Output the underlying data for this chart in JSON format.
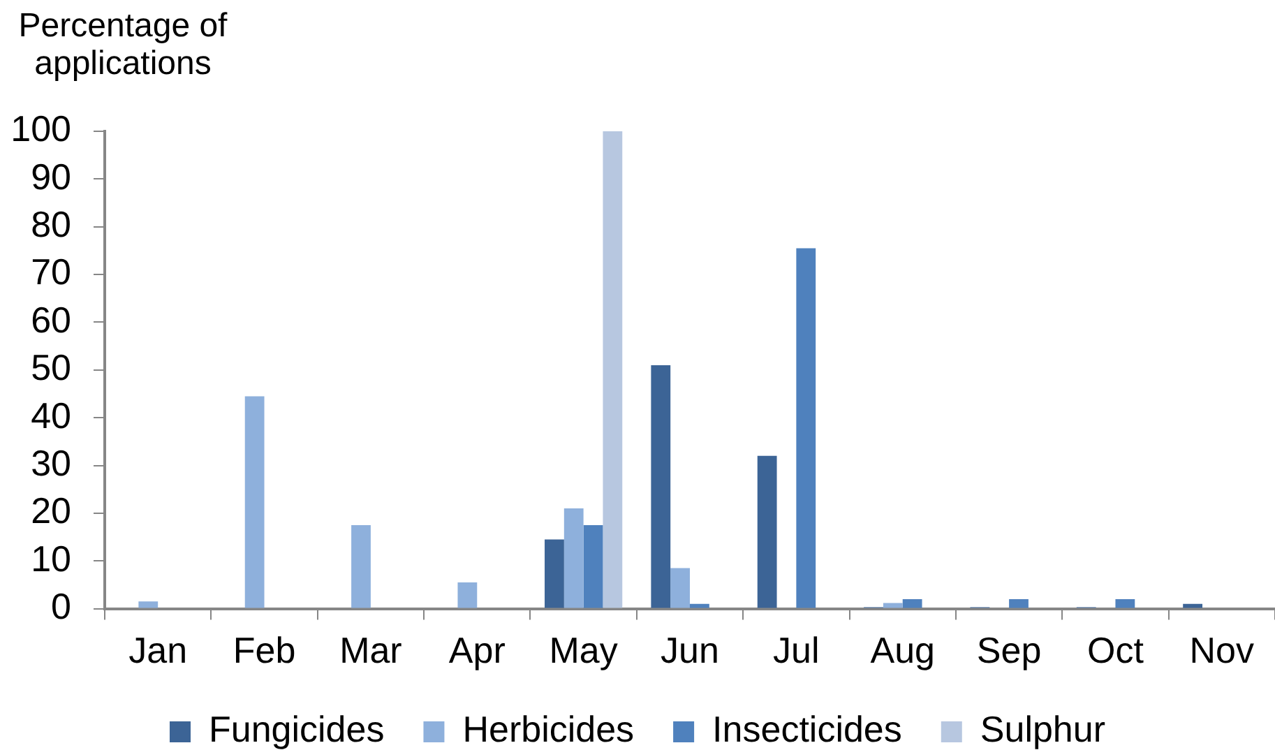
{
  "chart_data": {
    "type": "bar",
    "ylabel": "Percentage of applications",
    "categories": [
      "Jan",
      "Feb",
      "Mar",
      "Apr",
      "May",
      "Jun",
      "Jul",
      "Aug",
      "Sep",
      "Oct",
      "Nov"
    ],
    "series": [
      {
        "name": "Fungicides",
        "color": "#3c6496",
        "values": [
          0,
          0,
          0,
          0,
          14.5,
          51,
          32,
          0.3,
          0.3,
          0.3,
          1
        ]
      },
      {
        "name": "Herbicides",
        "color": "#8eb0dc",
        "values": [
          1.5,
          44.5,
          17.5,
          5.5,
          21,
          8.5,
          0,
          1.2,
          0,
          0,
          0
        ]
      },
      {
        "name": "Insecticides",
        "color": "#4f81bd",
        "values": [
          0,
          0,
          0,
          0,
          17.5,
          1,
          75.5,
          2,
          2,
          2,
          0
        ]
      },
      {
        "name": "Sulphur",
        "color": "#b7c7e0",
        "values": [
          0,
          0,
          0,
          0,
          100,
          0,
          0,
          0,
          0,
          0,
          0
        ]
      }
    ],
    "ylim": [
      0,
      100
    ],
    "yticks": [
      0,
      10,
      20,
      30,
      40,
      50,
      60,
      70,
      80,
      90,
      100
    ],
    "grid": false,
    "legend": "bottom"
  }
}
